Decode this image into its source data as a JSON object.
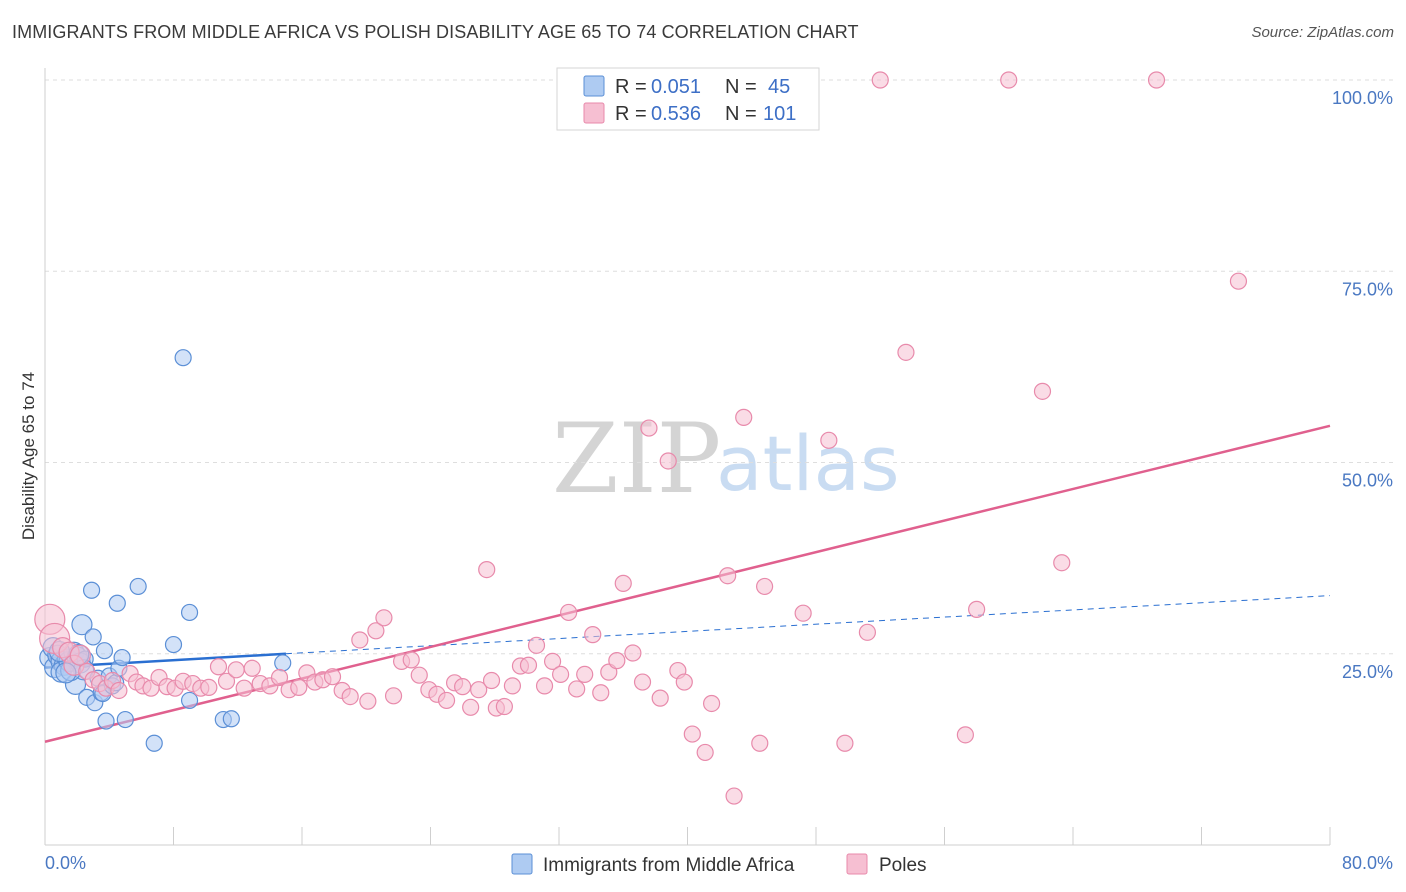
{
  "title": "IMMIGRANTS FROM MIDDLE AFRICA VS POLISH DISABILITY AGE 65 TO 74 CORRELATION CHART",
  "source": "Source: ZipAtlas.com",
  "watermark": {
    "zip": "ZIP",
    "atlas": "atlas"
  },
  "colors": {
    "blue_fill": "#aecbf2",
    "blue_stroke": "#5b8fd6",
    "blue_line": "#2a6fd1",
    "pink_fill": "#f6bfd2",
    "pink_stroke": "#e88aab",
    "pink_line": "#e0608e",
    "tick_blue": "#4a78c2"
  },
  "legend": {
    "rows": [
      {
        "r_label": "R =",
        "r_value": "0.051",
        "n_label": "N =",
        "n_value": "45"
      },
      {
        "r_label": "R =",
        "r_value": "0.536",
        "n_label": "N =",
        "n_value": "101"
      }
    ]
  },
  "bottom_legend": [
    "Immigrants from Middle Africa",
    "Poles"
  ],
  "chart_data": {
    "type": "scatter",
    "title": "IMMIGRANTS FROM MIDDLE AFRICA VS POLISH DISABILITY AGE 65 TO 74 CORRELATION CHART",
    "xlabel": "",
    "ylabel": "Disability Age 65 to 74",
    "xlim": [
      0,
      80
    ],
    "ylim": [
      0,
      100
    ],
    "x_tick_labels": [
      "0.0%",
      "80.0%"
    ],
    "y_ticks": [
      25,
      50,
      75,
      100
    ],
    "y_tick_labels": [
      "25.0%",
      "50.0%",
      "75.0%",
      "100.0%"
    ],
    "grid": "horizontal dashed",
    "legend_placement": "top-center",
    "series": [
      {
        "name": "Immigrants from Middle Africa",
        "color": "#aecbf2",
        "trend": {
          "x": [
            0,
            15
          ],
          "y": [
            23.2,
            25.0
          ],
          "dashed_to": [
            80,
            32.6
          ]
        },
        "points": [
          [
            0.3,
            24.5
          ],
          [
            0.5,
            25.8
          ],
          [
            0.6,
            23.2
          ],
          [
            0.8,
            24.8
          ],
          [
            1.0,
            24.0
          ],
          [
            1.2,
            23.5
          ],
          [
            1.4,
            24.3
          ],
          [
            1.0,
            22.6
          ],
          [
            1.5,
            24.0
          ],
          [
            1.8,
            25.2
          ],
          [
            2.0,
            24.6
          ],
          [
            2.2,
            23.8
          ],
          [
            2.5,
            24.3
          ],
          [
            1.9,
            21.0
          ],
          [
            2.3,
            28.8
          ],
          [
            2.4,
            22.9
          ],
          [
            2.6,
            19.3
          ],
          [
            2.9,
            33.3
          ],
          [
            3.0,
            27.2
          ],
          [
            3.1,
            18.6
          ],
          [
            3.3,
            21.8
          ],
          [
            3.5,
            19.9
          ],
          [
            3.6,
            19.8
          ],
          [
            3.7,
            25.4
          ],
          [
            3.8,
            16.2
          ],
          [
            4.0,
            22.1
          ],
          [
            4.2,
            20.8
          ],
          [
            4.4,
            21.2
          ],
          [
            4.5,
            31.6
          ],
          [
            4.6,
            23.1
          ],
          [
            4.8,
            24.5
          ],
          [
            5.0,
            16.4
          ],
          [
            5.8,
            33.8
          ],
          [
            6.8,
            13.3
          ],
          [
            8.0,
            26.2
          ],
          [
            8.6,
            63.7
          ],
          [
            9.0,
            30.4
          ],
          [
            9.0,
            18.9
          ],
          [
            11.1,
            16.4
          ],
          [
            11.6,
            16.5
          ],
          [
            14.8,
            23.8
          ],
          [
            1.6,
            22.8
          ],
          [
            2.1,
            24.9
          ],
          [
            0.9,
            25.3
          ],
          [
            1.3,
            22.5
          ]
        ]
      },
      {
        "name": "Poles",
        "color": "#f6bfd2",
        "trend": {
          "x": [
            0,
            80
          ],
          "y": [
            13.5,
            54.8
          ]
        },
        "points": [
          [
            0.3,
            29.5
          ],
          [
            0.6,
            27.0
          ],
          [
            1.1,
            25.8
          ],
          [
            1.5,
            25.2
          ],
          [
            1.8,
            23.5
          ],
          [
            2.2,
            24.8
          ],
          [
            2.6,
            22.7
          ],
          [
            3.0,
            21.6
          ],
          [
            3.4,
            21.1
          ],
          [
            3.8,
            20.5
          ],
          [
            4.2,
            21.5
          ],
          [
            4.6,
            20.2
          ],
          [
            5.3,
            22.4
          ],
          [
            5.7,
            21.3
          ],
          [
            6.1,
            20.8
          ],
          [
            6.6,
            20.5
          ],
          [
            7.1,
            21.9
          ],
          [
            7.6,
            20.7
          ],
          [
            8.1,
            20.5
          ],
          [
            8.6,
            21.4
          ],
          [
            9.2,
            21.1
          ],
          [
            9.7,
            20.5
          ],
          [
            10.2,
            20.6
          ],
          [
            10.8,
            23.3
          ],
          [
            11.3,
            21.4
          ],
          [
            11.9,
            22.9
          ],
          [
            12.4,
            20.5
          ],
          [
            12.9,
            23.1
          ],
          [
            13.4,
            21.1
          ],
          [
            14.0,
            20.8
          ],
          [
            14.6,
            21.9
          ],
          [
            15.2,
            20.3
          ],
          [
            15.8,
            20.6
          ],
          [
            16.3,
            22.5
          ],
          [
            16.8,
            21.3
          ],
          [
            17.3,
            21.6
          ],
          [
            17.9,
            22.0
          ],
          [
            18.5,
            20.2
          ],
          [
            19.0,
            19.4
          ],
          [
            19.6,
            26.8
          ],
          [
            20.1,
            18.8
          ],
          [
            20.6,
            28.0
          ],
          [
            21.1,
            29.7
          ],
          [
            21.7,
            19.5
          ],
          [
            22.2,
            24.0
          ],
          [
            22.8,
            24.2
          ],
          [
            23.3,
            22.2
          ],
          [
            23.9,
            20.3
          ],
          [
            24.4,
            19.7
          ],
          [
            25.0,
            18.9
          ],
          [
            25.5,
            21.2
          ],
          [
            26.0,
            20.7
          ],
          [
            26.5,
            18.0
          ],
          [
            27.0,
            20.3
          ],
          [
            27.5,
            36.0
          ],
          [
            27.8,
            21.5
          ],
          [
            28.1,
            17.9
          ],
          [
            28.6,
            18.1
          ],
          [
            29.1,
            20.8
          ],
          [
            29.6,
            23.4
          ],
          [
            30.1,
            23.5
          ],
          [
            30.6,
            26.1
          ],
          [
            31.1,
            20.8
          ],
          [
            31.6,
            24.0
          ],
          [
            32.1,
            22.3
          ],
          [
            32.6,
            30.4
          ],
          [
            33.1,
            20.4
          ],
          [
            33.6,
            22.3
          ],
          [
            34.1,
            27.5
          ],
          [
            34.6,
            19.9
          ],
          [
            35.1,
            22.6
          ],
          [
            35.6,
            24.1
          ],
          [
            36.0,
            34.2
          ],
          [
            36.6,
            25.1
          ],
          [
            37.2,
            21.3
          ],
          [
            37.6,
            54.5
          ],
          [
            38.3,
            19.2
          ],
          [
            38.8,
            50.2
          ],
          [
            39.4,
            22.8
          ],
          [
            39.8,
            21.3
          ],
          [
            40.3,
            14.5
          ],
          [
            41.1,
            12.1
          ],
          [
            41.5,
            18.5
          ],
          [
            42.5,
            35.2
          ],
          [
            42.9,
            6.4
          ],
          [
            43.5,
            55.9
          ],
          [
            44.5,
            13.3
          ],
          [
            44.8,
            33.8
          ],
          [
            47.2,
            30.3
          ],
          [
            48.8,
            52.9
          ],
          [
            49.8,
            13.3
          ],
          [
            51.2,
            27.8
          ],
          [
            52.0,
            100.0
          ],
          [
            53.6,
            64.4
          ],
          [
            60.0,
            100.0
          ],
          [
            58.0,
            30.8
          ],
          [
            62.1,
            59.3
          ],
          [
            63.3,
            36.9
          ],
          [
            69.2,
            100.0
          ],
          [
            74.3,
            73.7
          ],
          [
            57.3,
            14.4
          ]
        ]
      }
    ]
  }
}
